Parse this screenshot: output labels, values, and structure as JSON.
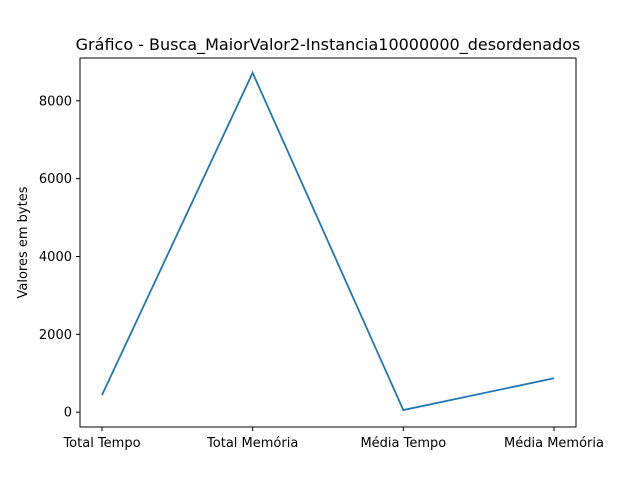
{
  "chart_data": {
    "type": "line",
    "title": "Gráfico - Busca_MaiorValor2-Instancia10000000_desordenados",
    "xlabel": "",
    "ylabel": "Valores em bytes",
    "categories": [
      "Total Tempo",
      "Total Memória",
      "Média Tempo",
      "Média Memória"
    ],
    "values": [
      440,
      8720,
      55,
      872
    ],
    "ylim": [
      -380,
      9100
    ],
    "yticks": [
      0,
      2000,
      4000,
      6000,
      8000
    ],
    "ytick_labels": [
      "0",
      "2000",
      "4000",
      "6000",
      "8000"
    ],
    "grid": false,
    "line_color": "#1f77b4"
  }
}
